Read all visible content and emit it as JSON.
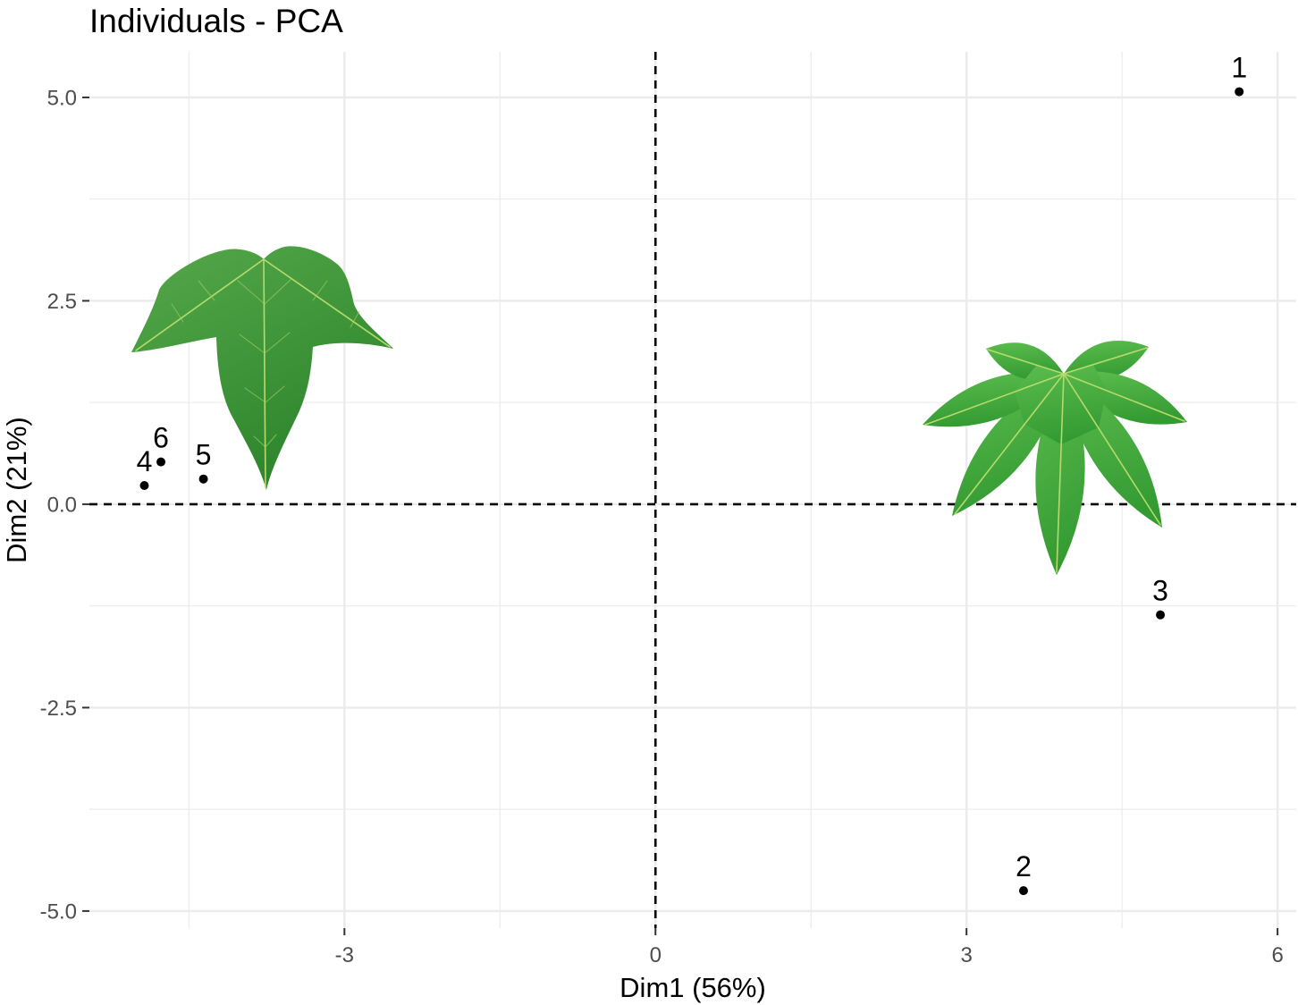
{
  "chart_data": {
    "type": "scatter",
    "title": "Individuals - PCA",
    "xlabel": "Dim1 (56%)",
    "ylabel": "Dim2 (21%)",
    "xlim": [
      -5.46,
      6.18
    ],
    "ylim": [
      -5.21,
      5.56
    ],
    "xticks": [
      -3,
      0,
      3,
      6
    ],
    "xtick_labels": [
      "-3",
      "0",
      "3",
      "6"
    ],
    "yticks": [
      -5,
      -2.5,
      0,
      2.5,
      5
    ],
    "ytick_labels": [
      "-5.0",
      "-2.5",
      "0.0",
      "2.5",
      "5.0"
    ],
    "x_minor_breaks": [
      -4.5,
      -1.5,
      1.5,
      4.5
    ],
    "y_minor_breaks": [
      -3.75,
      -1.25,
      1.25,
      3.75
    ],
    "grid": true,
    "legend": false,
    "reference_lines": {
      "x": 0,
      "y": 0,
      "dashed": true
    },
    "points": [
      {
        "label": "1",
        "x": 5.63,
        "y": 5.07
      },
      {
        "label": "2",
        "x": 3.55,
        "y": -4.75
      },
      {
        "label": "3",
        "x": 4.87,
        "y": -1.36
      },
      {
        "label": "4",
        "x": -4.93,
        "y": 0.23
      },
      {
        "label": "5",
        "x": -4.36,
        "y": 0.31
      },
      {
        "label": "6",
        "x": -4.77,
        "y": 0.52
      }
    ]
  },
  "colors": {
    "point": "#000000",
    "leaf_left_light": "#56a94b",
    "leaf_left_dark": "#2c842b",
    "leaf_right_light": "#5cbd4e",
    "leaf_right_dark": "#349b33"
  },
  "icons": {
    "left_leaf": "three-lobed-maple-leaf-icon",
    "right_leaf": "seven-lobed-maple-leaf-icon"
  }
}
